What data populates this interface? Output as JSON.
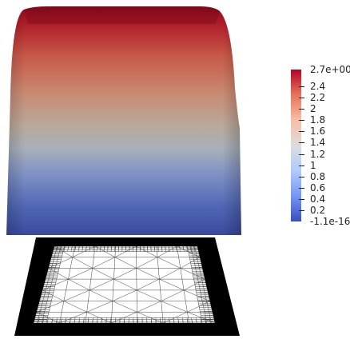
{
  "render": {
    "colormap": {
      "name": "cool-to-warm",
      "stops": [
        "#3b4cc0",
        "#7396f5",
        "#b0cbfc",
        "#dddddd",
        "#f6bfa6",
        "#e7745b",
        "#b40426"
      ]
    },
    "colorbar": {
      "max_label": "2.7e+00",
      "min_label": "-1.1e-16",
      "ticks": [
        "2.4",
        "2.2",
        "2",
        "1.8",
        "1.6",
        "1.4",
        "1.2",
        "1",
        "0.8",
        "0.6",
        "0.4",
        "0.2"
      ],
      "range": [
        -1.1e-16,
        2.7
      ]
    },
    "surface": {
      "shading": "smooth",
      "top_color": "#8b0a1c",
      "bottom_color": "#3a4da0"
    },
    "mesh": {
      "background": "#000000",
      "edge_color": "#ffffff"
    }
  }
}
